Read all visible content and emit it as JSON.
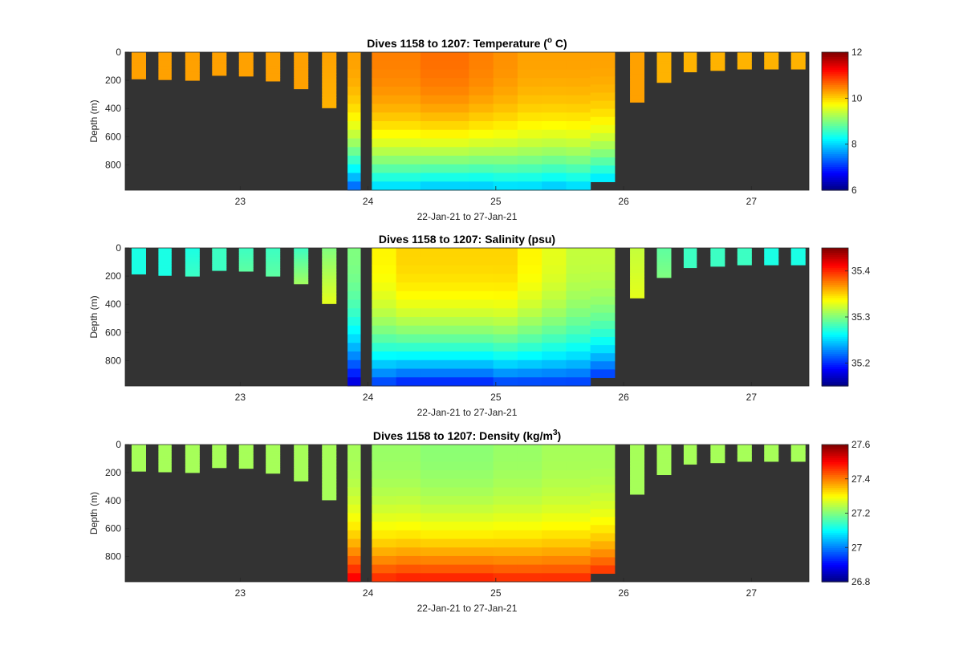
{
  "chart_data": [
    {
      "type": "heatmap",
      "title": "Dives 1158 to 1207: Temperature (",
      "title_sup": "o",
      "title_tail": " C)",
      "xlabel": "22-Jan-21 to 27-Jan-21",
      "ylabel": "Depth (m)",
      "xlim": [
        22.1,
        27.45
      ],
      "ylim": [
        980,
        0
      ],
      "xticks": [
        23,
        24,
        25,
        26,
        27
      ],
      "yticks": [
        0,
        200,
        400,
        600,
        800
      ],
      "colorbar": {
        "min": 6,
        "max": 12,
        "ticks": [
          6,
          8,
          10,
          12
        ]
      },
      "background": "#333333",
      "dives": [
        {
          "t": 22.15,
          "w": 0.11,
          "maxdepth": 190,
          "surface": 10.3,
          "deep": 10.3
        },
        {
          "t": 22.36,
          "w": 0.1,
          "maxdepth": 195,
          "surface": 10.3,
          "deep": 10.3
        },
        {
          "t": 22.57,
          "w": 0.11,
          "maxdepth": 200,
          "surface": 10.3,
          "deep": 10.3
        },
        {
          "t": 22.78,
          "w": 0.11,
          "maxdepth": 165,
          "surface": 10.3,
          "deep": 10.3
        },
        {
          "t": 22.99,
          "w": 0.11,
          "maxdepth": 170,
          "surface": 10.3,
          "deep": 10.3
        },
        {
          "t": 23.2,
          "w": 0.11,
          "maxdepth": 205,
          "surface": 10.3,
          "deep": 10.3
        },
        {
          "t": 23.42,
          "w": 0.11,
          "maxdepth": 260,
          "surface": 10.3,
          "deep": 10.3
        },
        {
          "t": 23.64,
          "w": 0.11,
          "maxdepth": 395,
          "surface": 10.3,
          "deep": 10.2
        },
        {
          "t": 23.84,
          "w": 0.1,
          "maxdepth": 980,
          "surface": 10.3,
          "deep": 7.2
        },
        {
          "t": 24.03,
          "w": 0.19,
          "maxdepth": 980,
          "surface": 10.5,
          "deep": 7.9
        },
        {
          "t": 24.22,
          "w": 0.19,
          "maxdepth": 980,
          "surface": 10.5,
          "deep": 7.9
        },
        {
          "t": 24.41,
          "w": 0.19,
          "maxdepth": 980,
          "surface": 10.6,
          "deep": 7.8
        },
        {
          "t": 24.6,
          "w": 0.19,
          "maxdepth": 980,
          "surface": 10.6,
          "deep": 7.8
        },
        {
          "t": 24.79,
          "w": 0.19,
          "maxdepth": 980,
          "surface": 10.5,
          "deep": 7.8
        },
        {
          "t": 24.98,
          "w": 0.19,
          "maxdepth": 980,
          "surface": 10.4,
          "deep": 7.9
        },
        {
          "t": 25.17,
          "w": 0.19,
          "maxdepth": 980,
          "surface": 10.3,
          "deep": 7.9
        },
        {
          "t": 25.36,
          "w": 0.19,
          "maxdepth": 980,
          "surface": 10.3,
          "deep": 7.8
        },
        {
          "t": 25.55,
          "w": 0.19,
          "maxdepth": 980,
          "surface": 10.3,
          "deep": 7.9
        },
        {
          "t": 25.74,
          "w": 0.19,
          "maxdepth": 920,
          "surface": 10.3,
          "deep": 8.0
        },
        {
          "t": 26.05,
          "w": 0.11,
          "maxdepth": 355,
          "surface": 10.3,
          "deep": 10.3
        },
        {
          "t": 26.26,
          "w": 0.11,
          "maxdepth": 215,
          "surface": 10.2,
          "deep": 10.2
        },
        {
          "t": 26.47,
          "w": 0.1,
          "maxdepth": 140,
          "surface": 10.2,
          "deep": 10.2
        },
        {
          "t": 26.68,
          "w": 0.11,
          "maxdepth": 130,
          "surface": 10.2,
          "deep": 10.2
        },
        {
          "t": 26.89,
          "w": 0.11,
          "maxdepth": 120,
          "surface": 10.2,
          "deep": 10.2
        },
        {
          "t": 27.1,
          "w": 0.11,
          "maxdepth": 120,
          "surface": 10.2,
          "deep": 10.2
        },
        {
          "t": 27.31,
          "w": 0.11,
          "maxdepth": 120,
          "surface": 10.2,
          "deep": 10.2
        }
      ]
    },
    {
      "type": "heatmap",
      "title": "Dives 1158 to 1207: Salinity (psu)",
      "xlabel": "22-Jan-21 to 27-Jan-21",
      "ylabel": "Depth (m)",
      "xlim": [
        22.1,
        27.45
      ],
      "ylim": [
        980,
        0
      ],
      "xticks": [
        23,
        24,
        25,
        26,
        27
      ],
      "yticks": [
        0,
        200,
        400,
        600,
        800
      ],
      "colorbar": {
        "min": 35.15,
        "max": 35.45,
        "ticks": [
          35.2,
          35.3,
          35.4
        ]
      },
      "background": "#333333",
      "dives": [
        {
          "t": 22.15,
          "w": 0.11,
          "maxdepth": 185,
          "surface": 35.27,
          "deep": 35.27
        },
        {
          "t": 22.36,
          "w": 0.1,
          "maxdepth": 195,
          "surface": 35.27,
          "deep": 35.27
        },
        {
          "t": 22.57,
          "w": 0.11,
          "maxdepth": 200,
          "surface": 35.27,
          "deep": 35.28
        },
        {
          "t": 22.78,
          "w": 0.11,
          "maxdepth": 160,
          "surface": 35.28,
          "deep": 35.28
        },
        {
          "t": 22.99,
          "w": 0.11,
          "maxdepth": 165,
          "surface": 35.28,
          "deep": 35.29
        },
        {
          "t": 23.2,
          "w": 0.11,
          "maxdepth": 200,
          "surface": 35.28,
          "deep": 35.29
        },
        {
          "t": 23.42,
          "w": 0.11,
          "maxdepth": 255,
          "surface": 35.28,
          "deep": 35.31
        },
        {
          "t": 23.64,
          "w": 0.11,
          "maxdepth": 395,
          "surface": 35.3,
          "deep": 35.33
        },
        {
          "t": 23.84,
          "w": 0.1,
          "maxdepth": 980,
          "surface": 35.3,
          "deep": 35.17
        },
        {
          "t": 24.03,
          "w": 0.19,
          "maxdepth": 980,
          "surface": 35.34,
          "deep": 35.2
        },
        {
          "t": 24.22,
          "w": 0.19,
          "maxdepth": 980,
          "surface": 35.35,
          "deep": 35.19
        },
        {
          "t": 24.41,
          "w": 0.19,
          "maxdepth": 980,
          "surface": 35.35,
          "deep": 35.19
        },
        {
          "t": 24.6,
          "w": 0.19,
          "maxdepth": 980,
          "surface": 35.35,
          "deep": 35.19
        },
        {
          "t": 24.79,
          "w": 0.19,
          "maxdepth": 980,
          "surface": 35.35,
          "deep": 35.19
        },
        {
          "t": 24.98,
          "w": 0.19,
          "maxdepth": 980,
          "surface": 35.35,
          "deep": 35.2
        },
        {
          "t": 25.17,
          "w": 0.19,
          "maxdepth": 980,
          "surface": 35.34,
          "deep": 35.2
        },
        {
          "t": 25.36,
          "w": 0.19,
          "maxdepth": 980,
          "surface": 35.33,
          "deep": 35.2
        },
        {
          "t": 25.55,
          "w": 0.19,
          "maxdepth": 980,
          "surface": 35.32,
          "deep": 35.2
        },
        {
          "t": 25.74,
          "w": 0.19,
          "maxdepth": 920,
          "surface": 35.32,
          "deep": 35.2
        },
        {
          "t": 26.05,
          "w": 0.11,
          "maxdepth": 355,
          "surface": 35.32,
          "deep": 35.33
        },
        {
          "t": 26.26,
          "w": 0.11,
          "maxdepth": 210,
          "surface": 35.29,
          "deep": 35.3
        },
        {
          "t": 26.47,
          "w": 0.1,
          "maxdepth": 140,
          "surface": 35.28,
          "deep": 35.28
        },
        {
          "t": 26.68,
          "w": 0.11,
          "maxdepth": 130,
          "surface": 35.28,
          "deep": 35.28
        },
        {
          "t": 26.89,
          "w": 0.11,
          "maxdepth": 120,
          "surface": 35.28,
          "deep": 35.28
        },
        {
          "t": 27.1,
          "w": 0.11,
          "maxdepth": 120,
          "surface": 35.27,
          "deep": 35.27
        },
        {
          "t": 27.31,
          "w": 0.11,
          "maxdepth": 120,
          "surface": 35.27,
          "deep": 35.27
        }
      ]
    },
    {
      "type": "heatmap",
      "title": "Dives 1158 to 1207: Density (kg/m",
      "title_sup": "3",
      "title_tail": ")",
      "xlabel": "22-Jan-21 to 27-Jan-21",
      "ylabel": "Depth (m)",
      "xlim": [
        22.1,
        27.45
      ],
      "ylim": [
        980,
        0
      ],
      "xticks": [
        23,
        24,
        25,
        26,
        27
      ],
      "yticks": [
        0,
        200,
        400,
        600,
        800
      ],
      "colorbar": {
        "min": 26.8,
        "max": 27.6,
        "ticks": [
          26.8,
          27,
          27.2,
          27.4,
          27.6
        ]
      },
      "background": "#333333",
      "dives": [
        {
          "t": 22.15,
          "w": 0.11,
          "maxdepth": 190,
          "surface": 27.23,
          "deep": 27.23
        },
        {
          "t": 22.36,
          "w": 0.1,
          "maxdepth": 195,
          "surface": 27.23,
          "deep": 27.23
        },
        {
          "t": 22.57,
          "w": 0.11,
          "maxdepth": 200,
          "surface": 27.23,
          "deep": 27.23
        },
        {
          "t": 22.78,
          "w": 0.11,
          "maxdepth": 165,
          "surface": 27.23,
          "deep": 27.23
        },
        {
          "t": 22.99,
          "w": 0.11,
          "maxdepth": 170,
          "surface": 27.23,
          "deep": 27.23
        },
        {
          "t": 23.2,
          "w": 0.11,
          "maxdepth": 205,
          "surface": 27.23,
          "deep": 27.23
        },
        {
          "t": 23.42,
          "w": 0.11,
          "maxdepth": 260,
          "surface": 27.23,
          "deep": 27.23
        },
        {
          "t": 23.64,
          "w": 0.11,
          "maxdepth": 395,
          "surface": 27.23,
          "deep": 27.23
        },
        {
          "t": 23.84,
          "w": 0.1,
          "maxdepth": 980,
          "surface": 27.23,
          "deep": 27.52
        },
        {
          "t": 24.03,
          "w": 0.19,
          "maxdepth": 980,
          "surface": 27.22,
          "deep": 27.48
        },
        {
          "t": 24.22,
          "w": 0.19,
          "maxdepth": 980,
          "surface": 27.22,
          "deep": 27.49
        },
        {
          "t": 24.41,
          "w": 0.19,
          "maxdepth": 980,
          "surface": 27.21,
          "deep": 27.49
        },
        {
          "t": 24.6,
          "w": 0.19,
          "maxdepth": 980,
          "surface": 27.21,
          "deep": 27.49
        },
        {
          "t": 24.79,
          "w": 0.19,
          "maxdepth": 980,
          "surface": 27.21,
          "deep": 27.49
        },
        {
          "t": 24.98,
          "w": 0.19,
          "maxdepth": 980,
          "surface": 27.22,
          "deep": 27.48
        },
        {
          "t": 25.17,
          "w": 0.19,
          "maxdepth": 980,
          "surface": 27.22,
          "deep": 27.48
        },
        {
          "t": 25.36,
          "w": 0.19,
          "maxdepth": 980,
          "surface": 27.23,
          "deep": 27.48
        },
        {
          "t": 25.55,
          "w": 0.19,
          "maxdepth": 980,
          "surface": 27.23,
          "deep": 27.48
        },
        {
          "t": 25.74,
          "w": 0.19,
          "maxdepth": 920,
          "surface": 27.23,
          "deep": 27.47
        },
        {
          "t": 26.05,
          "w": 0.11,
          "maxdepth": 355,
          "surface": 27.23,
          "deep": 27.23
        },
        {
          "t": 26.26,
          "w": 0.11,
          "maxdepth": 215,
          "surface": 27.23,
          "deep": 27.23
        },
        {
          "t": 26.47,
          "w": 0.1,
          "maxdepth": 140,
          "surface": 27.23,
          "deep": 27.23
        },
        {
          "t": 26.68,
          "w": 0.11,
          "maxdepth": 130,
          "surface": 27.23,
          "deep": 27.23
        },
        {
          "t": 26.89,
          "w": 0.11,
          "maxdepth": 120,
          "surface": 27.23,
          "deep": 27.23
        },
        {
          "t": 27.1,
          "w": 0.11,
          "maxdepth": 120,
          "surface": 27.23,
          "deep": 27.23
        },
        {
          "t": 27.31,
          "w": 0.11,
          "maxdepth": 120,
          "surface": 27.23,
          "deep": 27.23
        }
      ]
    }
  ]
}
